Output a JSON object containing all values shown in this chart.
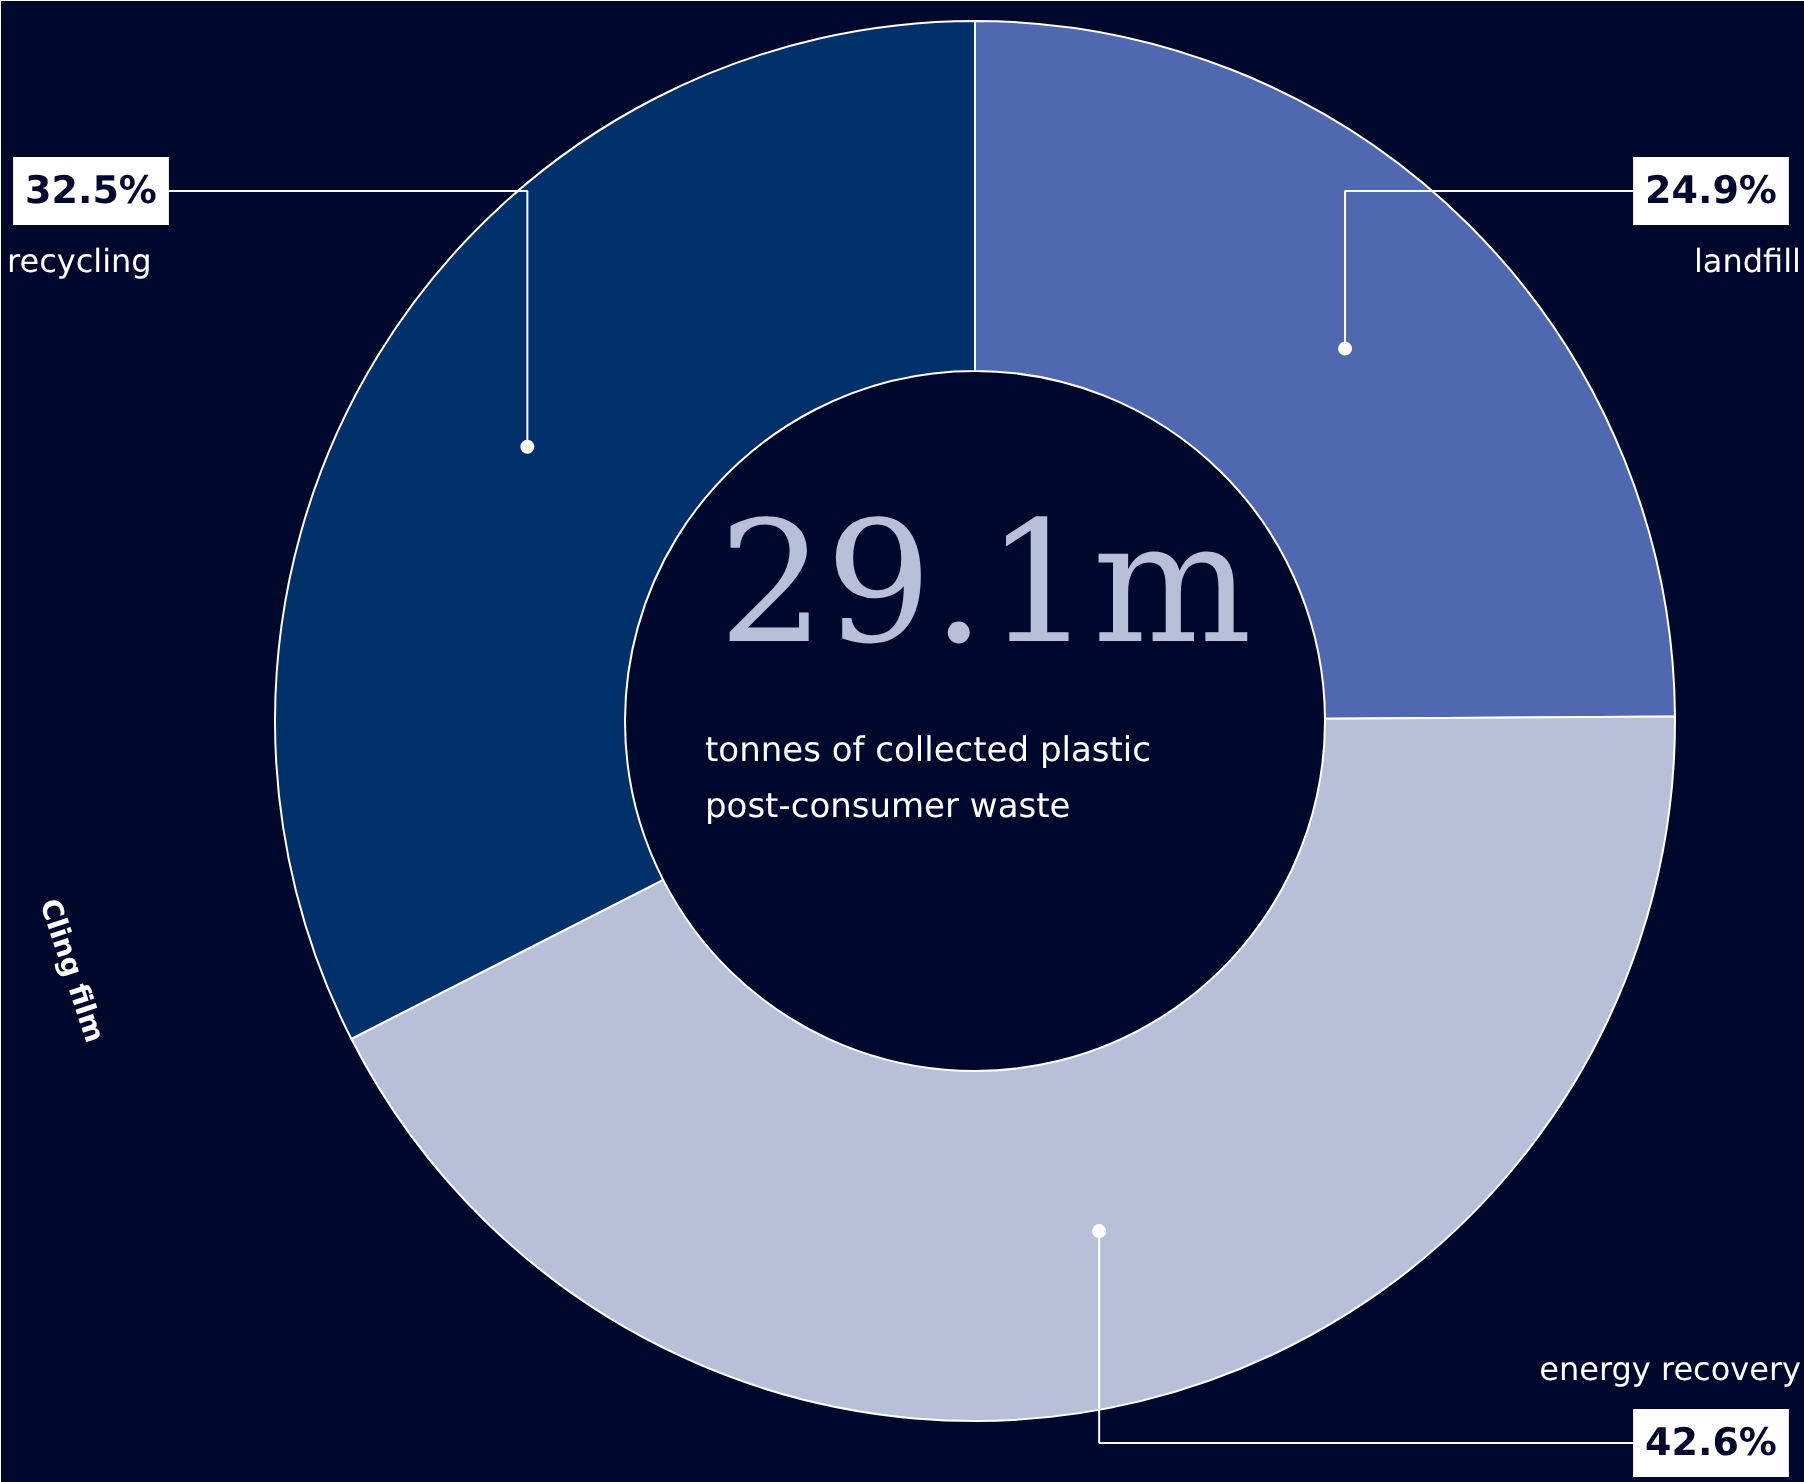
{
  "chart_data": {
    "type": "donut",
    "title": "29.1m",
    "subtitle": "tonnes of collected plastic post-consumer waste",
    "categories": [
      "landfill",
      "energy recovery",
      "recycling"
    ],
    "values": [
      24.9,
      42.6,
      32.5
    ],
    "value_labels": [
      "24.9%",
      "42.6%",
      "32.5%"
    ],
    "colors": [
      "#5068b0",
      "#b8bfd8",
      "#00306a"
    ],
    "annotations": [
      "Cling film"
    ]
  }
}
